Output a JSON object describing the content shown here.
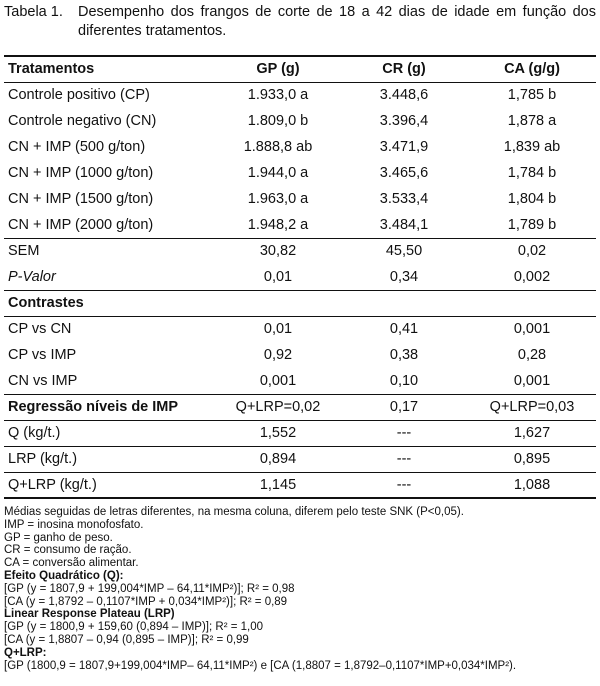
{
  "caption": {
    "label": "Tabela 1.",
    "text": "Desempenho dos frangos de corte de 18 a 42 dias de idade em função dos diferentes tratamentos."
  },
  "table": {
    "headers": [
      "Tratamentos",
      "GP (g)",
      "CR (g)",
      "CA (g/g)"
    ],
    "treatments": [
      [
        "Controle positivo (CP)",
        "1.933,0 a",
        "3.448,6",
        "1,785 b"
      ],
      [
        "Controle negativo (CN)",
        "1.809,0 b",
        "3.396,4",
        "1,878 a"
      ],
      [
        "CN + IMP (500 g/ton)",
        "1.888,8 ab",
        "3.471,9",
        "1,839 ab"
      ],
      [
        "CN + IMP (1000 g/ton)",
        "1.944,0 a",
        "3.465,6",
        "1,784 b"
      ],
      [
        "CN + IMP (1500 g/ton)",
        "1.963,0 a",
        "3.533,4",
        "1,804 b"
      ],
      [
        "CN + IMP (2000 g/ton)",
        "1.948,2 a",
        "3.484,1",
        "1,789 b"
      ]
    ],
    "sem": [
      "SEM",
      "30,82",
      "45,50",
      "0,02"
    ],
    "pvalor": [
      "P-Valor",
      "0,01",
      "0,34",
      "0,002"
    ],
    "contrastes_title": "Contrastes",
    "contrastes": [
      [
        "CP vs CN",
        "0,01",
        "0,41",
        "0,001"
      ],
      [
        "CP vs IMP",
        "0,92",
        "0,38",
        "0,28"
      ],
      [
        "CN vs IMP",
        "0,001",
        "0,10",
        "0,001"
      ]
    ],
    "regressao": [
      "Regressão níveis de IMP",
      "Q+LRP=0,02",
      "0,17",
      "Q+LRP=0,03"
    ],
    "regressao_rows": [
      [
        "Q (kg/t.)",
        "1,552",
        "---",
        "1,627"
      ],
      [
        "LRP (kg/t.)",
        "0,894",
        "---",
        "0,895"
      ],
      [
        "Q+LRP (kg/t.)",
        "1,145",
        "---",
        "1,088"
      ]
    ]
  },
  "notes": [
    {
      "text": "Médias seguidas de letras diferentes, na mesma coluna, diferem pelo teste SNK (P<0,05).",
      "bold": false
    },
    {
      "text": "IMP = inosina monofosfato.",
      "bold": false
    },
    {
      "text": "GP = ganho de peso.",
      "bold": false
    },
    {
      "text": "CR = consumo de ração.",
      "bold": false
    },
    {
      "text": "CA = conversão alimentar.",
      "bold": false
    },
    {
      "text": "Efeito Quadrático (Q):",
      "bold": true
    },
    {
      "text": "[GP (y = 1807,9 + 199,004*IMP – 64,11*IMP²)]; R² = 0,98",
      "bold": false
    },
    {
      "text": "[CA (y = 1,8792 – 0,1107*IMP + 0,034*IMP²)]; R² = 0,89",
      "bold": false
    },
    {
      "text": "Linear Response Plateau (LRP)",
      "bold": true
    },
    {
      "text": "[GP (y = 1800,9 + 159,60 (0,894 – IMP)]; R² = 1,00",
      "bold": false
    },
    {
      "text": "[CA (y = 1,8807 – 0,94 (0,895 – IMP)]; R² = 0,99",
      "bold": false
    },
    {
      "text": "Q+LRP:",
      "bold": true
    },
    {
      "text": "[GP (1800,9 = 1807,9+199,004*IMP– 64,11*IMP²) e [CA (1,8807 = 1,8792–0,1107*IMP+0,034*IMP²).",
      "bold": false
    }
  ]
}
